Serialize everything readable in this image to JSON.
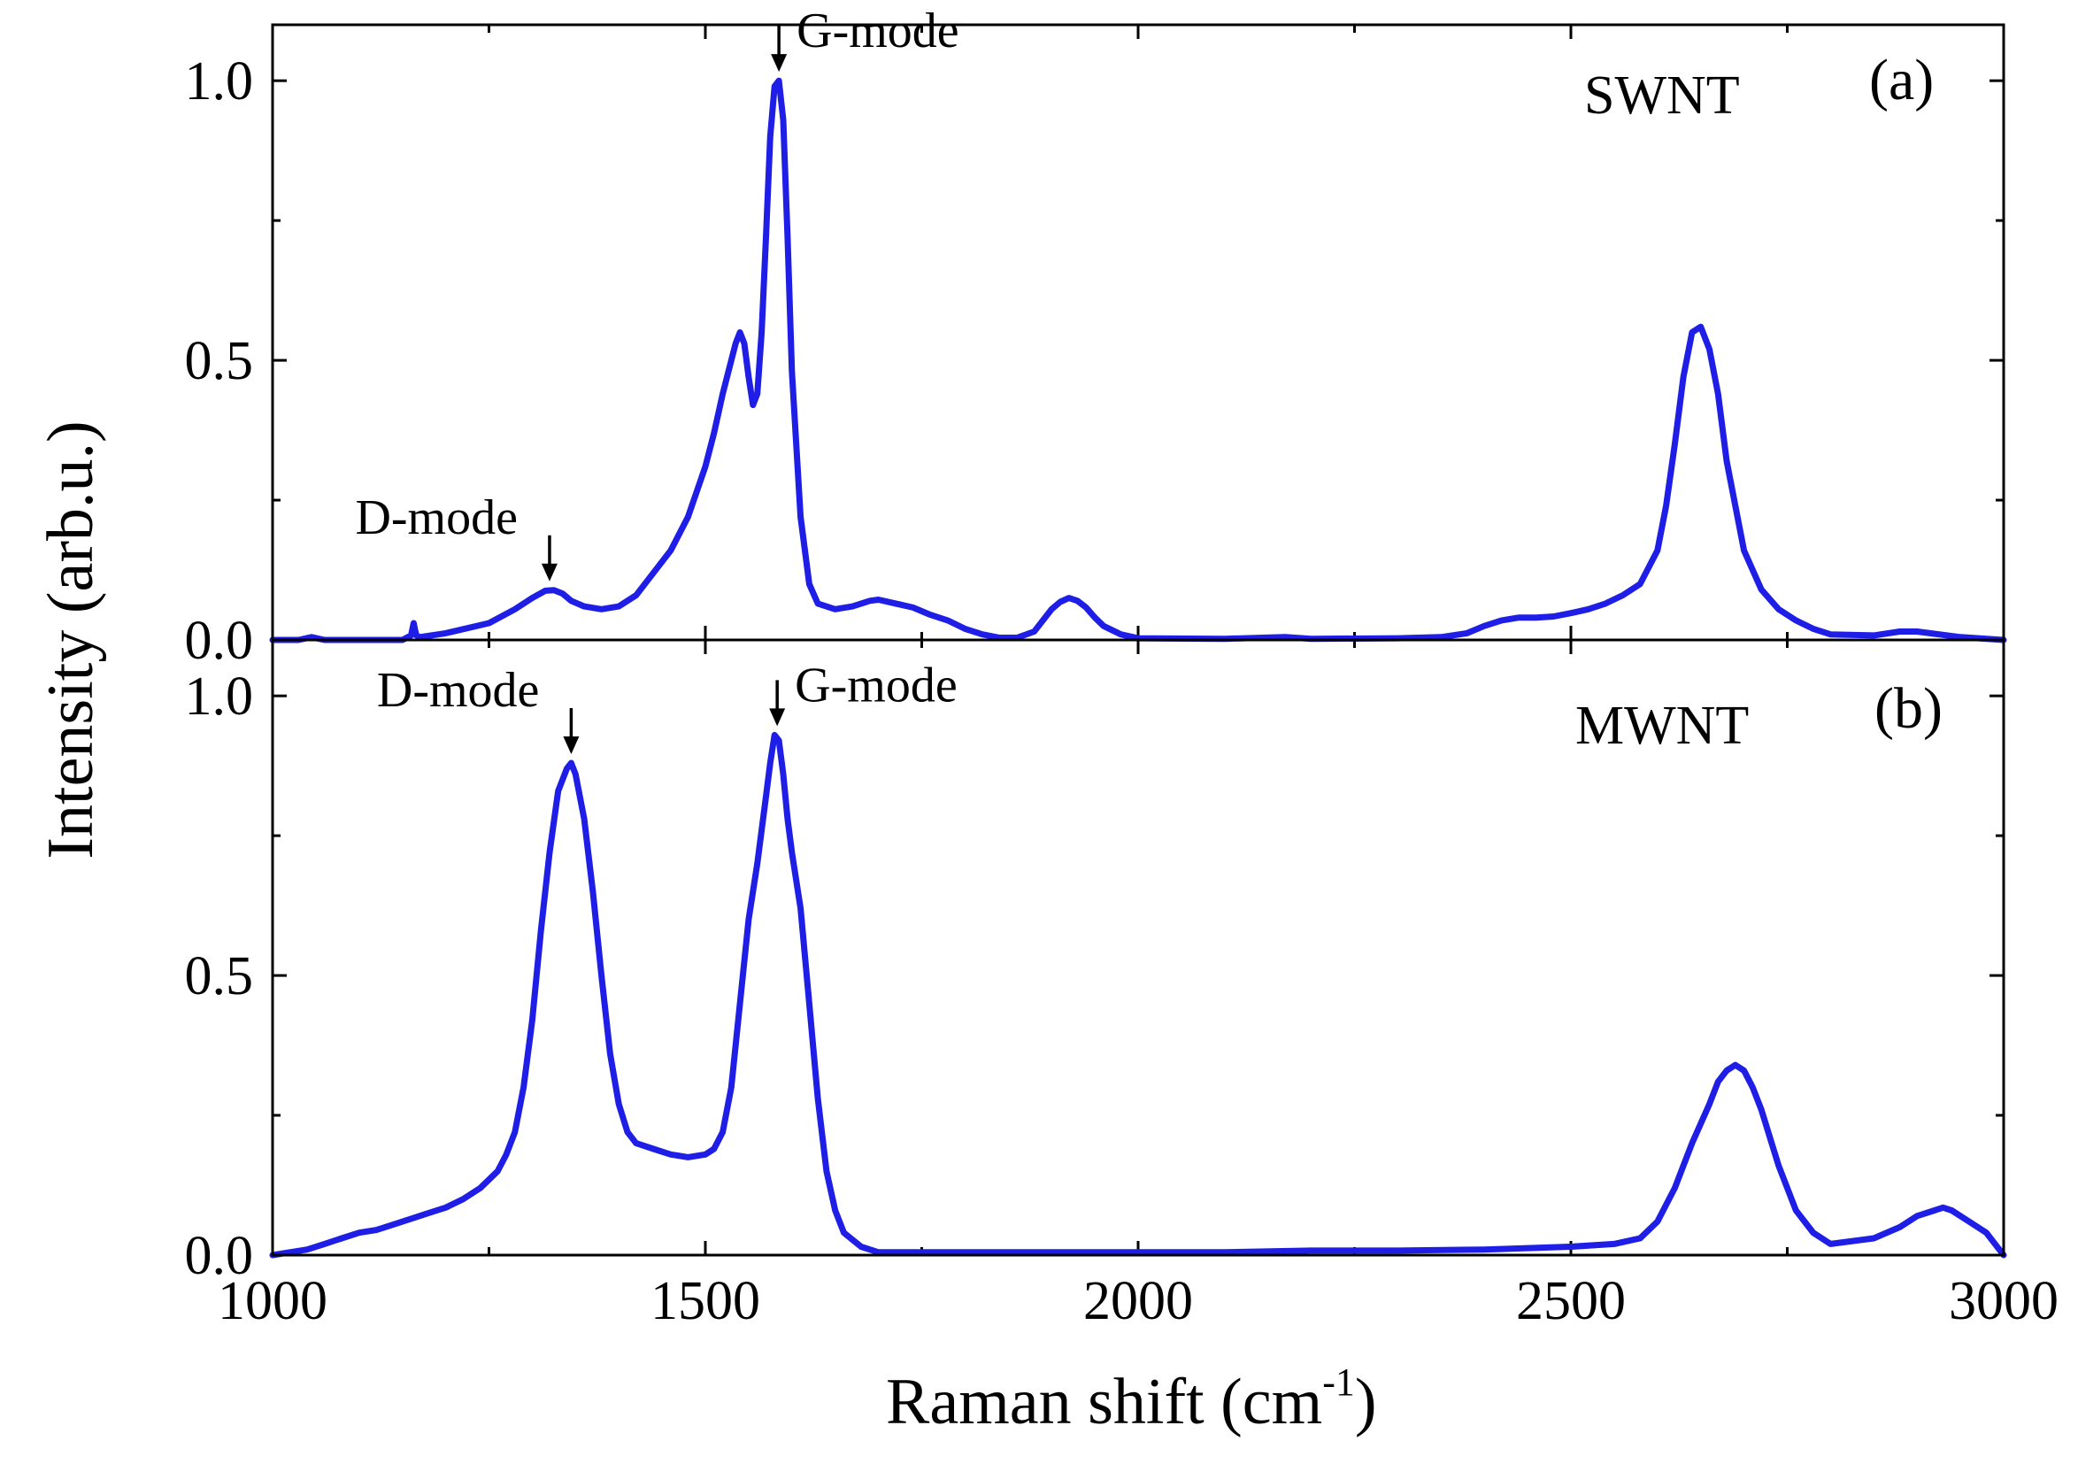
{
  "chart_data": [
    {
      "panel": "(a)",
      "type": "line",
      "sample": "SWNT",
      "xlim": [
        1000,
        3000
      ],
      "ylim": [
        0,
        1.1
      ],
      "xticks": [
        1000,
        1500,
        2000,
        2500,
        3000
      ],
      "yticks": [
        "0.0",
        "0.5",
        "1.0"
      ],
      "series": [
        {
          "name": "SWNT",
          "color": "#1e1ee6",
          "x": [
            1000,
            1030,
            1045,
            1060,
            1100,
            1150,
            1160,
            1163,
            1166,
            1170,
            1200,
            1250,
            1280,
            1300,
            1315,
            1325,
            1335,
            1345,
            1360,
            1380,
            1400,
            1420,
            1440,
            1460,
            1480,
            1500,
            1510,
            1520,
            1530,
            1535,
            1540,
            1545,
            1550,
            1555,
            1560,
            1565,
            1570,
            1575,
            1580,
            1585,
            1590,
            1595,
            1600,
            1610,
            1620,
            1630,
            1650,
            1670,
            1690,
            1700,
            1720,
            1740,
            1760,
            1780,
            1800,
            1820,
            1840,
            1860,
            1880,
            1900,
            1910,
            1920,
            1930,
            1940,
            1950,
            1960,
            1980,
            2000,
            2100,
            2170,
            2200,
            2300,
            2350,
            2380,
            2400,
            2420,
            2440,
            2460,
            2480,
            2500,
            2520,
            2540,
            2560,
            2580,
            2600,
            2610,
            2620,
            2630,
            2640,
            2650,
            2660,
            2670,
            2680,
            2700,
            2720,
            2740,
            2760,
            2780,
            2800,
            2850,
            2880,
            2900,
            2950,
            3000
          ],
          "values": [
            0.0,
            0.0,
            0.005,
            0.0,
            0.0,
            0.0,
            0.008,
            0.03,
            0.008,
            0.005,
            0.012,
            0.03,
            0.055,
            0.075,
            0.088,
            0.089,
            0.083,
            0.07,
            0.06,
            0.055,
            0.06,
            0.08,
            0.12,
            0.16,
            0.22,
            0.31,
            0.37,
            0.44,
            0.5,
            0.53,
            0.55,
            0.53,
            0.47,
            0.42,
            0.44,
            0.55,
            0.72,
            0.9,
            0.99,
            1.0,
            0.93,
            0.72,
            0.48,
            0.22,
            0.1,
            0.065,
            0.055,
            0.06,
            0.07,
            0.072,
            0.065,
            0.058,
            0.045,
            0.035,
            0.02,
            0.01,
            0.004,
            0.004,
            0.015,
            0.055,
            0.068,
            0.075,
            0.07,
            0.058,
            0.04,
            0.025,
            0.01,
            0.003,
            0.002,
            0.005,
            0.002,
            0.003,
            0.005,
            0.012,
            0.025,
            0.035,
            0.04,
            0.04,
            0.042,
            0.048,
            0.055,
            0.065,
            0.08,
            0.1,
            0.16,
            0.24,
            0.35,
            0.47,
            0.55,
            0.56,
            0.52,
            0.44,
            0.32,
            0.16,
            0.09,
            0.055,
            0.035,
            0.02,
            0.01,
            0.008,
            0.015,
            0.015,
            0.005,
            0.0
          ]
        }
      ],
      "annotations": [
        {
          "text": "D-mode",
          "x": 1320
        },
        {
          "text": "G-mode",
          "x": 1585
        }
      ]
    },
    {
      "panel": "(b)",
      "type": "line",
      "sample": "MWNT",
      "xlim": [
        1000,
        3000
      ],
      "ylim": [
        0,
        1.1
      ],
      "xticks": [
        1000,
        1500,
        2000,
        2500,
        3000
      ],
      "yticks": [
        "0.0",
        "0.5",
        "1.0"
      ],
      "series": [
        {
          "name": "MWNT",
          "color": "#1e1ee6",
          "x": [
            1000,
            1020,
            1040,
            1060,
            1080,
            1100,
            1120,
            1140,
            1160,
            1180,
            1200,
            1220,
            1240,
            1260,
            1270,
            1280,
            1290,
            1300,
            1310,
            1320,
            1330,
            1340,
            1345,
            1350,
            1360,
            1370,
            1380,
            1390,
            1400,
            1410,
            1420,
            1440,
            1460,
            1480,
            1500,
            1510,
            1520,
            1530,
            1540,
            1550,
            1560,
            1565,
            1570,
            1575,
            1580,
            1585,
            1590,
            1595,
            1600,
            1610,
            1620,
            1630,
            1640,
            1650,
            1660,
            1680,
            1700,
            1800,
            1900,
            2000,
            2100,
            2200,
            2300,
            2400,
            2500,
            2550,
            2580,
            2600,
            2620,
            2640,
            2660,
            2670,
            2680,
            2690,
            2700,
            2710,
            2720,
            2740,
            2760,
            2780,
            2800,
            2850,
            2880,
            2900,
            2920,
            2930,
            2940,
            2960,
            2980,
            2990,
            3000
          ],
          "values": [
            0.0,
            0.005,
            0.01,
            0.02,
            0.03,
            0.04,
            0.045,
            0.055,
            0.065,
            0.075,
            0.085,
            0.1,
            0.12,
            0.15,
            0.18,
            0.22,
            0.3,
            0.42,
            0.58,
            0.72,
            0.83,
            0.87,
            0.88,
            0.86,
            0.78,
            0.65,
            0.5,
            0.36,
            0.27,
            0.22,
            0.2,
            0.19,
            0.18,
            0.175,
            0.18,
            0.19,
            0.22,
            0.3,
            0.45,
            0.6,
            0.7,
            0.76,
            0.82,
            0.88,
            0.93,
            0.92,
            0.86,
            0.78,
            0.72,
            0.62,
            0.45,
            0.28,
            0.15,
            0.08,
            0.04,
            0.015,
            0.005,
            0.005,
            0.005,
            0.005,
            0.005,
            0.008,
            0.008,
            0.01,
            0.015,
            0.02,
            0.03,
            0.06,
            0.12,
            0.2,
            0.27,
            0.31,
            0.33,
            0.34,
            0.33,
            0.3,
            0.26,
            0.16,
            0.08,
            0.04,
            0.02,
            0.03,
            0.05,
            0.07,
            0.08,
            0.085,
            0.08,
            0.06,
            0.04,
            0.02,
            0.0
          ]
        }
      ],
      "annotations": [
        {
          "text": "D-mode",
          "x": 1345
        },
        {
          "text": "G-mode",
          "x": 1583
        }
      ]
    }
  ],
  "shared": {
    "xlabel_main": "Raman shift   (cm",
    "xlabel_sup": "-1",
    "xlabel_close": ")",
    "ylabel": "Intensity (arb.u.)"
  }
}
